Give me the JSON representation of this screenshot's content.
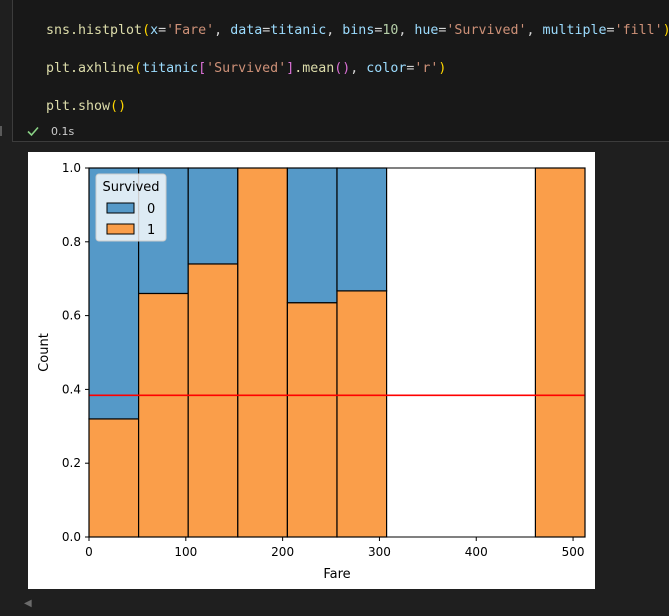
{
  "code": {
    "line1": {
      "fn": "sns.histplot",
      "open": "(",
      "x_kw": "x",
      "eq": "=",
      "x_val": "'Fare'",
      "c1": ", ",
      "data_kw": "data",
      "data_val": "titanic",
      "c2": ", ",
      "bins_kw": "bins",
      "bins_val": "10",
      "c3": ", ",
      "hue_kw": "hue",
      "hue_val": "'Survived'",
      "c4": ", ",
      "mult_kw": "multiple",
      "mult_val": "'fill'",
      "close": ")"
    },
    "line2": {
      "fn": "plt.axhline",
      "open": "(",
      "obj": "titanic",
      "br_open": "[",
      "key": "'Survived'",
      "br_close": "]",
      "meth": ".mean",
      "mopen": "(",
      "mclose": ")",
      "c1": ", ",
      "color_kw": "color",
      "eq": "=",
      "color_val": "'r'",
      "close": ")"
    },
    "line3": {
      "fn": "plt.show",
      "open": "(",
      "close": ")"
    }
  },
  "status": {
    "time": "0.1s",
    "icon": "check-icon",
    "color": "#89d185"
  },
  "chart_data": {
    "type": "bar",
    "stacking": "fill",
    "xlabel": "Fare",
    "ylabel": "Count",
    "xlim": [
      0,
      512.33
    ],
    "ylim": [
      0,
      1.0
    ],
    "xticks": [
      0,
      100,
      200,
      300,
      400,
      500
    ],
    "yticks": [
      0.0,
      0.2,
      0.4,
      0.6,
      0.8,
      1.0
    ],
    "ytick_labels": [
      "0.0",
      "0.2",
      "0.4",
      "0.6",
      "0.8",
      "1.0"
    ],
    "bin_edges": [
      0,
      51.23,
      102.47,
      153.7,
      204.93,
      256.16,
      307.4,
      358.63,
      409.86,
      461.1,
      512.33
    ],
    "series": [
      {
        "name": "0",
        "color": "#5599c8",
        "values": [
          0.68,
          0.34,
          0.26,
          0.0,
          0.365,
          0.333,
          null,
          null,
          null,
          0.0
        ]
      },
      {
        "name": "1",
        "color": "#fa9e4a",
        "values": [
          0.32,
          0.66,
          0.74,
          1.0,
          0.635,
          0.667,
          null,
          null,
          null,
          1.0
        ]
      }
    ],
    "legend": {
      "title": "Survived",
      "position": "top-left",
      "labels": [
        "0",
        "1"
      ]
    },
    "hline": {
      "y": 0.384,
      "color": "#ff0000"
    }
  }
}
